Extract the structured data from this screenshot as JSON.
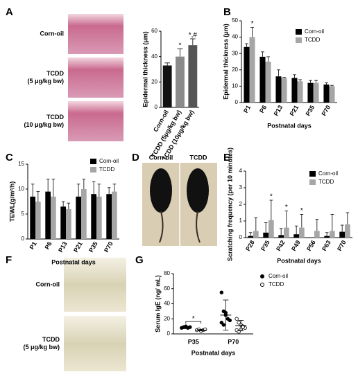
{
  "photo_panels": [
    {
      "panel": "A",
      "labels": [
        {
          "lines": [
            "Corn-oil"
          ]
        },
        {
          "lines": [
            "TCDD",
            "(5 μg/kg bw)"
          ]
        },
        {
          "lines": [
            "TCDD",
            "(10 μg/kg bw)"
          ]
        }
      ]
    },
    {
      "panel": "D",
      "labels": [
        {
          "lines": [
            "Corn-oil"
          ]
        },
        {
          "lines": [
            "TCDD"
          ]
        }
      ]
    },
    {
      "panel": "F",
      "labels": [
        {
          "lines": [
            "Corn-oil"
          ]
        },
        {
          "lines": [
            "TCDD",
            "(5 μg/kg bw)"
          ]
        }
      ]
    }
  ],
  "chart_data": [
    {
      "type": "bar",
      "ylabel": "Epidermal thickness (μm)",
      "categories": [
        "Corn-oil",
        "TCDD (5μg/kg bw)",
        "TCDD (10μg/kg bw)"
      ],
      "values": [
        33,
        40,
        49
      ],
      "errors": [
        2,
        6,
        5
      ],
      "colors": [
        "#111111",
        "#8a8a8a",
        "#555555"
      ],
      "annotations": [
        null,
        "*",
        "*,#"
      ],
      "ylim": [
        0,
        60
      ],
      "yticks": [
        0,
        20,
        40,
        60
      ]
    },
    {
      "type": "bar",
      "panel": "B",
      "ylabel": "Epidermal thickness (μm)",
      "xlabel": "Postnatal days",
      "categories": [
        "P1",
        "P6",
        "P13",
        "P21",
        "P35",
        "P70"
      ],
      "series": [
        {
          "name": "Corn-oil",
          "color": "#000000",
          "values": [
            34,
            28,
            16,
            15,
            12,
            11
          ],
          "errors": [
            2,
            3,
            4,
            2,
            1.5,
            1
          ]
        },
        {
          "name": "TCDD",
          "color": "#a6a6a6",
          "values": [
            40,
            25,
            15,
            13,
            12,
            10
          ],
          "errors": [
            6,
            3,
            0.5,
            1,
            1.5,
            0.5
          ]
        }
      ],
      "annotations": [
        "*",
        null,
        null,
        null,
        null,
        null
      ],
      "ylim": [
        0,
        50
      ],
      "yticks": [
        0,
        10,
        20,
        30,
        40,
        50
      ]
    },
    {
      "type": "bar",
      "panel": "C",
      "ylabel": "TEWL(g/m²/h)",
      "xlabel": "Postnatal days",
      "categories": [
        "P1",
        "P6",
        "P13",
        "P21",
        "P35",
        "P70"
      ],
      "series": [
        {
          "name": "Corn-oil",
          "color": "#000000",
          "values": [
            8.5,
            9.5,
            6.5,
            8.5,
            9,
            9
          ],
          "errors": [
            2.5,
            2.5,
            1,
            2.5,
            2.5,
            1.3
          ]
        },
        {
          "name": "TCDD",
          "color": "#a6a6a6",
          "values": [
            7.5,
            8.5,
            6,
            10,
            8.5,
            9.5
          ],
          "errors": [
            2,
            3.5,
            1.2,
            2,
            2.5,
            1.5
          ]
        }
      ],
      "ylim": [
        0,
        15
      ],
      "yticks": [
        0,
        5,
        10,
        15
      ]
    },
    {
      "type": "bar",
      "panel": "E",
      "ylabel": "Scratching frequency (per 10 minutes)",
      "xlabel": "Postnatal days",
      "categories": [
        "P28",
        "P35",
        "P42",
        "P49",
        "P56",
        "P63",
        "P70"
      ],
      "series": [
        {
          "name": "Corn-oil",
          "color": "#000000",
          "values": [
            0.1,
            0.3,
            0.15,
            0.2,
            0,
            0.1,
            0.35
          ],
          "errors": [
            0.2,
            0.6,
            0.4,
            0.5,
            0,
            0.2,
            0.4
          ]
        },
        {
          "name": "TCDD",
          "color": "#a6a6a6",
          "values": [
            0.4,
            1.05,
            0.6,
            0.6,
            0.4,
            0.4,
            0.8
          ],
          "errors": [
            0.8,
            1.2,
            1,
            0.8,
            0.7,
            1,
            0.7
          ]
        }
      ],
      "annotations": [
        null,
        "*",
        "*",
        "*",
        null,
        null,
        null
      ],
      "ylim": [
        0,
        4
      ],
      "yticks": [
        0,
        1,
        2,
        3,
        4
      ]
    },
    {
      "type": "dot",
      "panel": "G",
      "ylabel": "Serum IgE (ng/ mL)",
      "xlabel": "Postnatal days",
      "categories": [
        "P35",
        "P70"
      ],
      "series": [
        {
          "name": "Corn-oil",
          "color": "#000000",
          "open": false,
          "values": [
            8,
            25
          ],
          "errors": [
            1,
            20
          ],
          "points": [
            [
              8,
              9,
              10,
              8,
              9
            ],
            [
              55,
              30,
              25,
              20,
              18,
              15,
              12,
              28
            ]
          ]
        },
        {
          "name": "TCDD",
          "color": "#000000",
          "open": true,
          "values": [
            5,
            11
          ],
          "errors": [
            1,
            7
          ],
          "points": [
            [
              5,
              6,
              4,
              5,
              6
            ],
            [
              20,
              15,
              12,
              10,
              8,
              5,
              3,
              6,
              9
            ]
          ]
        }
      ],
      "significance": "*",
      "ylim": [
        0,
        80
      ],
      "yticks": [
        0,
        20,
        40,
        60,
        80
      ]
    }
  ]
}
